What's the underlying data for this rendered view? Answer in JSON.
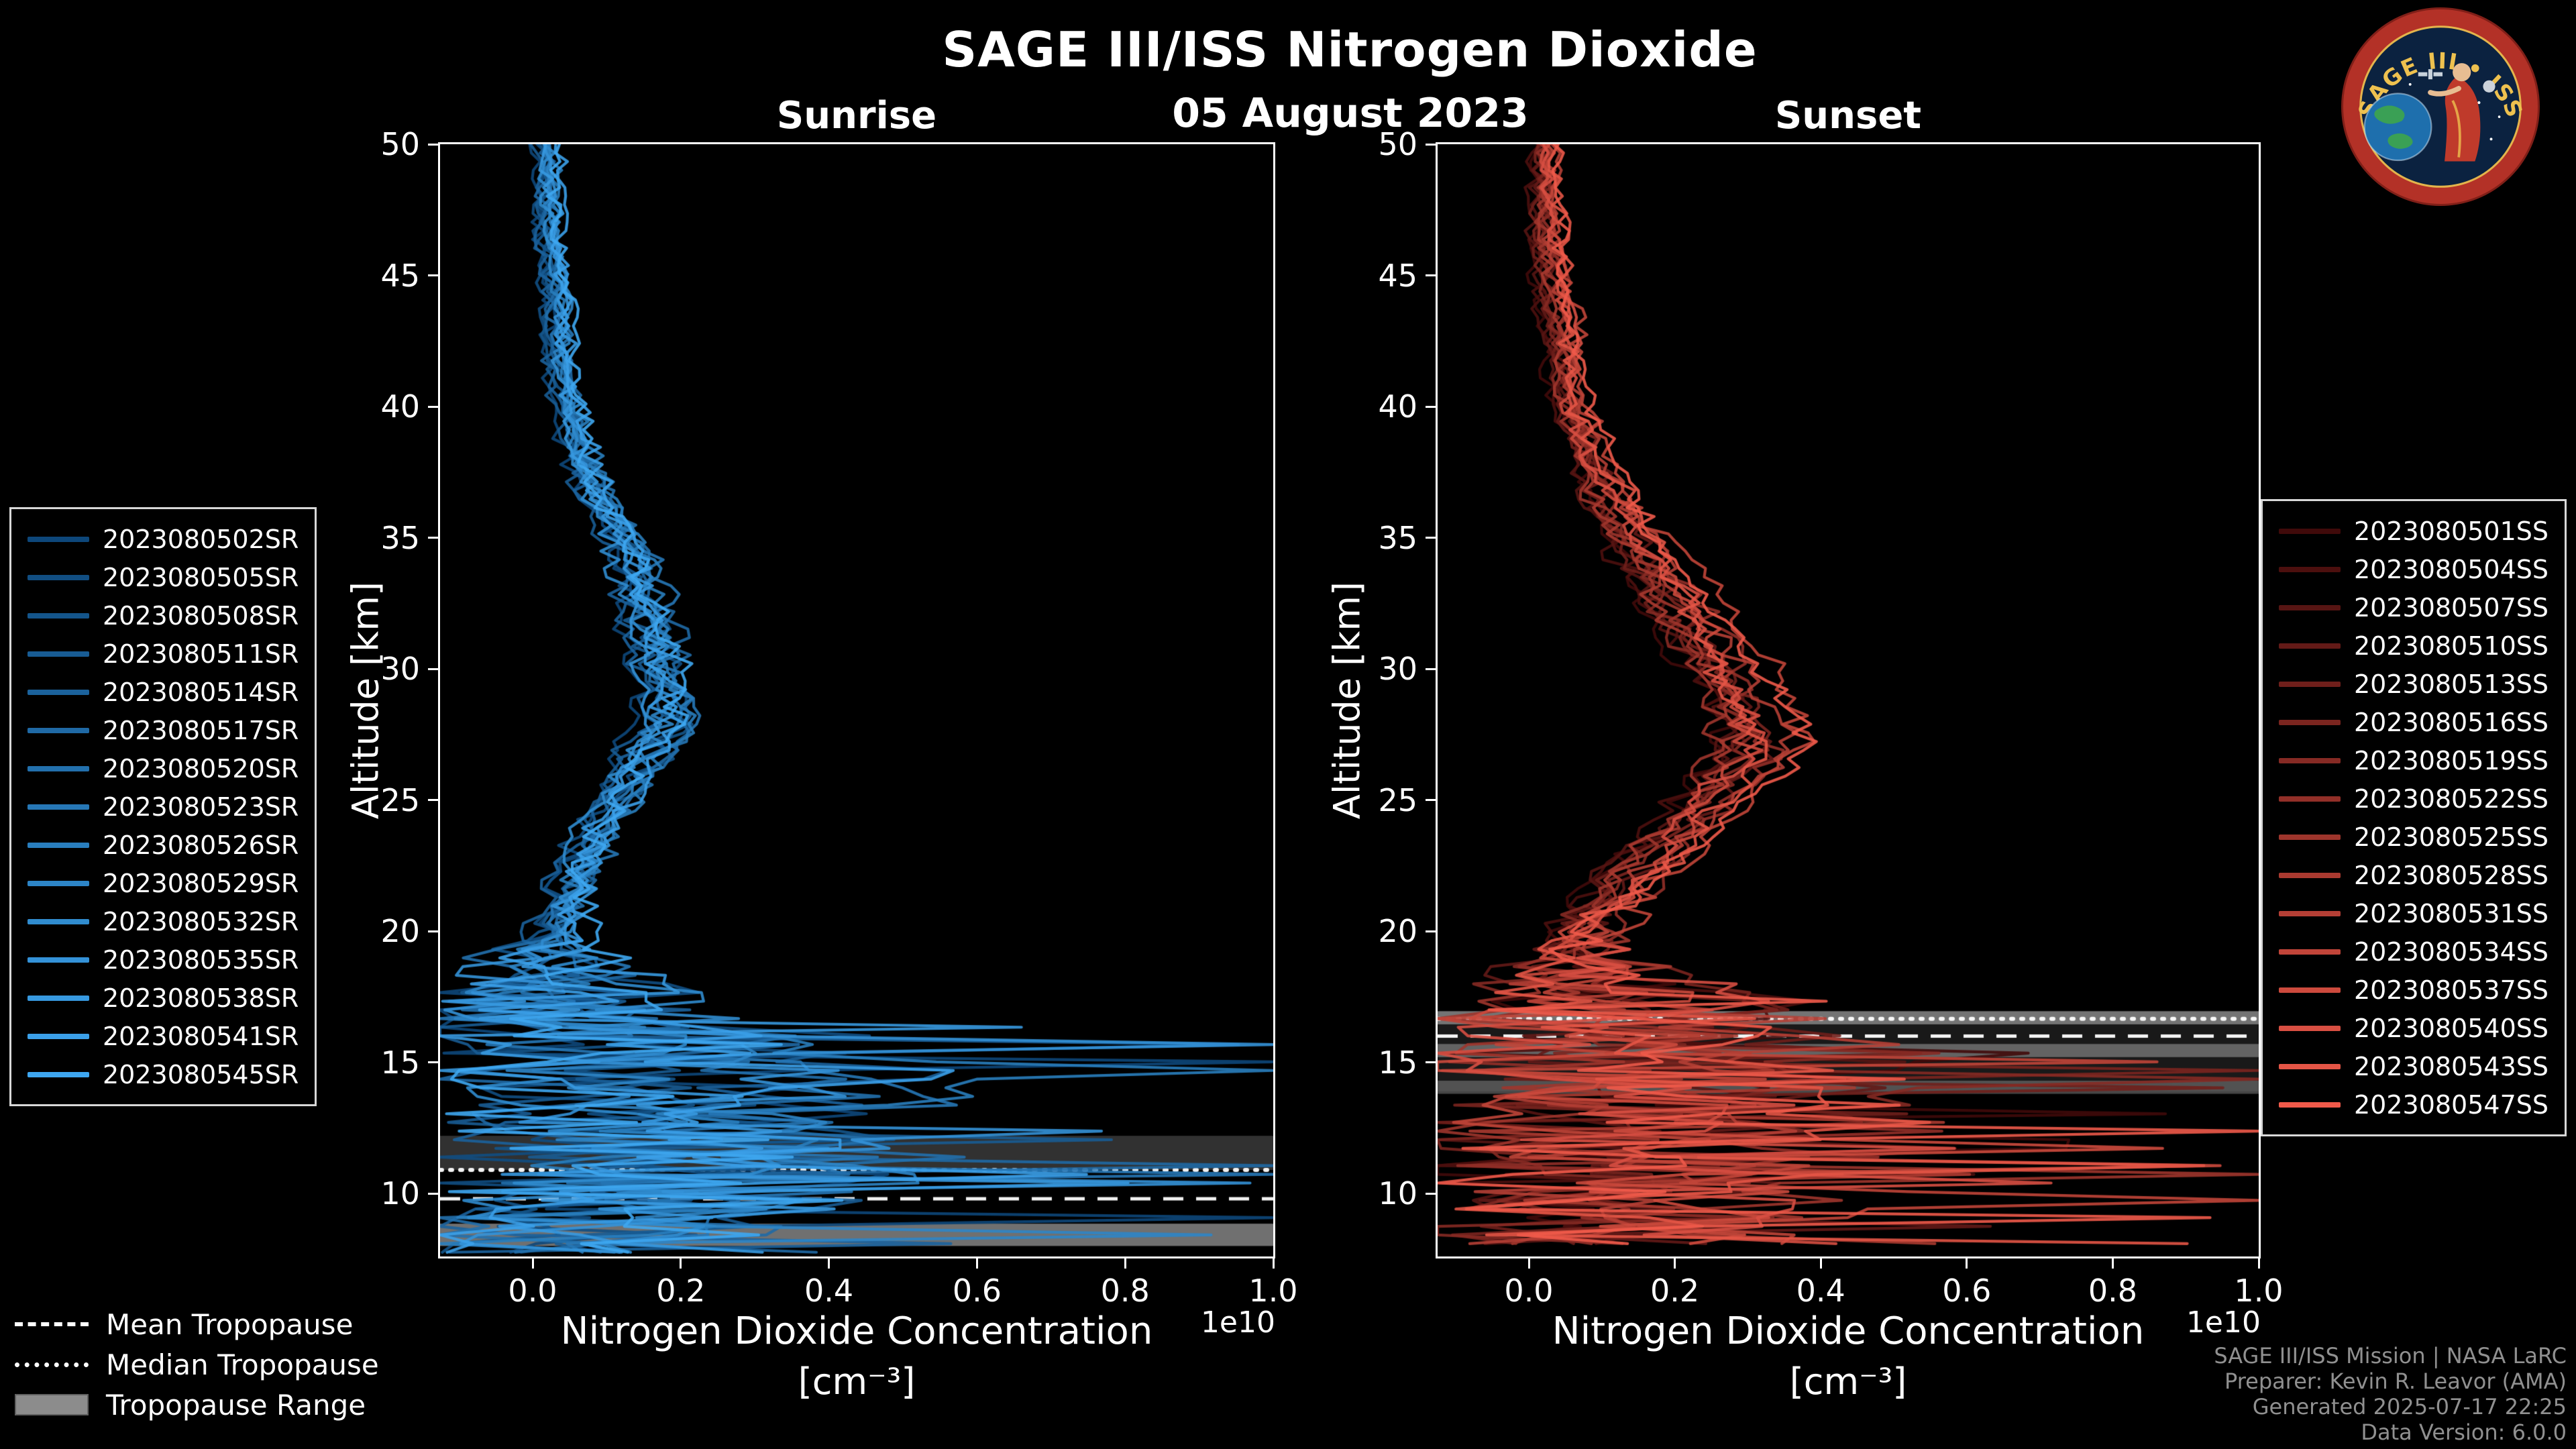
{
  "header": {
    "title": "SAGE III/ISS Nitrogen Dioxide",
    "date": "05 August 2023"
  },
  "logo": {
    "title": "SAGE III • ISS"
  },
  "colors": {
    "background": "#000000",
    "foreground": "#ffffff",
    "tropopause_gray": "#8c8c8c",
    "credits_gray": "#909090",
    "legend_border": "#d8d8d8",
    "sunrise_accent": "#3ea7f1",
    "sunset_accent": "#f05a4a"
  },
  "tropopause_legend": {
    "items": [
      {
        "label": "Mean Tropopause",
        "style": "dashed"
      },
      {
        "label": "Median Tropopause",
        "style": "dotted"
      },
      {
        "label": "Tropopause Range",
        "style": "patch"
      }
    ]
  },
  "footer": {
    "lines": [
      "SAGE III/ISS Mission | NASA LaRC",
      "Preparer: Kevin R. Leavor (AMA)",
      "Generated 2025-07-17 22:25",
      "Data Version: 6.0.0"
    ]
  },
  "chart_data": [
    {
      "type": "line",
      "panel_title": "Sunrise",
      "x_label": "Nitrogen Dioxide Concentration",
      "x_units_label": "[cm⁻³]",
      "x_offset_label": "1e10",
      "y_label": "Altitude [km]",
      "xlim": [
        -0.125,
        1.0
      ],
      "ylim": [
        7.6,
        50
      ],
      "x_ticks": [
        0.0,
        0.2,
        0.4,
        0.6,
        0.8,
        1.0
      ],
      "x_tick_labels": [
        "0.0",
        "0.2",
        "0.4",
        "0.6",
        "0.8",
        "1.0"
      ],
      "y_ticks": [
        50,
        45,
        40,
        35,
        30,
        25,
        20,
        15,
        10
      ],
      "y_tick_labels": [
        "50",
        "45",
        "40",
        "35",
        "30",
        "25",
        "20",
        "15",
        "10"
      ],
      "alt_min_km": 7.68,
      "seed": 8502,
      "series": [
        {
          "name": "2023080502SR",
          "color": "#0d477a"
        },
        {
          "name": "2023080505SR",
          "color": "#114e82"
        },
        {
          "name": "2023080508SR",
          "color": "#14558b"
        },
        {
          "name": "2023080511SR",
          "color": "#185c94"
        },
        {
          "name": "2023080514SR",
          "color": "#1b629c"
        },
        {
          "name": "2023080517SR",
          "color": "#1f69a5"
        },
        {
          "name": "2023080520SR",
          "color": "#2270ad"
        },
        {
          "name": "2023080523SR",
          "color": "#2677b6"
        },
        {
          "name": "2023080526SR",
          "color": "#297ebe"
        },
        {
          "name": "2023080529SR",
          "color": "#2d85c7"
        },
        {
          "name": "2023080532SR",
          "color": "#308ccf"
        },
        {
          "name": "2023080535SR",
          "color": "#3492d8"
        },
        {
          "name": "2023080538SR",
          "color": "#3799e0"
        },
        {
          "name": "2023080541SR",
          "color": "#3ba0e9"
        },
        {
          "name": "2023080545SR",
          "color": "#3ea7f1"
        }
      ],
      "mean_profile": {
        "altitude_km": [
          50,
          46,
          42,
          40,
          38,
          36,
          34,
          32,
          30,
          28,
          26,
          24,
          22,
          20,
          19,
          18,
          16,
          14,
          12,
          10,
          8
        ],
        "value_1e10cm3": [
          0.02,
          0.025,
          0.04,
          0.05,
          0.07,
          0.1,
          0.14,
          0.16,
          0.18,
          0.2,
          0.14,
          0.09,
          0.06,
          0.03,
          0.03,
          0.07,
          0.14,
          0.22,
          0.18,
          0.15,
          0.1
        ]
      },
      "noise_profile": {
        "altitude_km": [
          50,
          42,
          36,
          32,
          28,
          24,
          21,
          19.5,
          18.5,
          17,
          15,
          13,
          11,
          9,
          8
        ],
        "amplitude_1e10cm3": [
          0.013,
          0.014,
          0.02,
          0.025,
          0.025,
          0.022,
          0.03,
          0.05,
          0.12,
          0.2,
          0.28,
          0.3,
          0.3,
          0.26,
          0.2
        ]
      },
      "tropopause": {
        "mean_km": 9.8,
        "median_km": 10.9,
        "range_bands_km": [
          [
            8.0,
            8.85,
            0.8
          ],
          [
            10.9,
            12.2,
            0.35
          ]
        ]
      }
    },
    {
      "type": "line",
      "panel_title": "Sunset",
      "x_label": "Nitrogen Dioxide Concentration",
      "x_units_label": "[cm⁻³]",
      "x_offset_label": "1e10",
      "y_label": "Altitude [km]",
      "xlim": [
        -0.125,
        1.0
      ],
      "ylim": [
        7.6,
        50
      ],
      "x_ticks": [
        0.0,
        0.2,
        0.4,
        0.6,
        0.8,
        1.0
      ],
      "x_tick_labels": [
        "0.0",
        "0.2",
        "0.4",
        "0.6",
        "0.8",
        "1.0"
      ],
      "y_ticks": [
        50,
        45,
        40,
        35,
        30,
        25,
        20,
        15,
        10
      ],
      "y_tick_labels": [
        "50",
        "45",
        "40",
        "35",
        "30",
        "25",
        "20",
        "15",
        "10"
      ],
      "alt_min_km": 8.05,
      "seed": 9501,
      "series": [
        {
          "name": "2023080501SS",
          "color": "#400a0a"
        },
        {
          "name": "2023080504SS",
          "color": "#4c0f0e"
        },
        {
          "name": "2023080507SS",
          "color": "#571513"
        },
        {
          "name": "2023080510SS",
          "color": "#631a17"
        },
        {
          "name": "2023080513SS",
          "color": "#6f1f1b"
        },
        {
          "name": "2023080516SS",
          "color": "#7b251f"
        },
        {
          "name": "2023080519SS",
          "color": "#862a24"
        },
        {
          "name": "2023080522SS",
          "color": "#922f28"
        },
        {
          "name": "2023080525SS",
          "color": "#9e352c"
        },
        {
          "name": "2023080528SS",
          "color": "#aa3a30"
        },
        {
          "name": "2023080531SS",
          "color": "#b53f35"
        },
        {
          "name": "2023080534SS",
          "color": "#c14539"
        },
        {
          "name": "2023080537SS",
          "color": "#cd4a3d"
        },
        {
          "name": "2023080540SS",
          "color": "#d84f42"
        },
        {
          "name": "2023080543SS",
          "color": "#e45546"
        },
        {
          "name": "2023080547SS",
          "color": "#f05a4a"
        }
      ],
      "mean_profile": {
        "altitude_km": [
          50,
          46,
          42,
          40,
          38,
          36,
          34,
          32,
          30,
          28,
          27,
          26,
          24,
          22,
          20,
          19,
          18,
          16,
          14,
          12,
          10,
          8
        ],
        "value_1e10cm3": [
          0.02,
          0.03,
          0.05,
          0.06,
          0.09,
          0.13,
          0.18,
          0.23,
          0.28,
          0.32,
          0.33,
          0.3,
          0.23,
          0.15,
          0.08,
          0.06,
          0.09,
          0.17,
          0.24,
          0.2,
          0.17,
          0.12
        ]
      },
      "noise_profile": {
        "altitude_km": [
          50,
          42,
          36,
          32,
          28,
          24,
          21,
          19.5,
          18.5,
          17,
          15,
          13,
          11,
          9,
          8
        ],
        "amplitude_1e10cm3": [
          0.013,
          0.015,
          0.022,
          0.028,
          0.03,
          0.025,
          0.035,
          0.06,
          0.13,
          0.22,
          0.3,
          0.3,
          0.3,
          0.26,
          0.2
        ]
      },
      "tropopause": {
        "mean_km": 16.0,
        "median_km": 16.66,
        "range_bands_km": [
          [
            16.45,
            16.95,
            0.8
          ],
          [
            15.2,
            15.7,
            0.65
          ],
          [
            13.8,
            14.3,
            0.5
          ],
          [
            13.9,
            16.95,
            0.18
          ]
        ]
      }
    }
  ]
}
